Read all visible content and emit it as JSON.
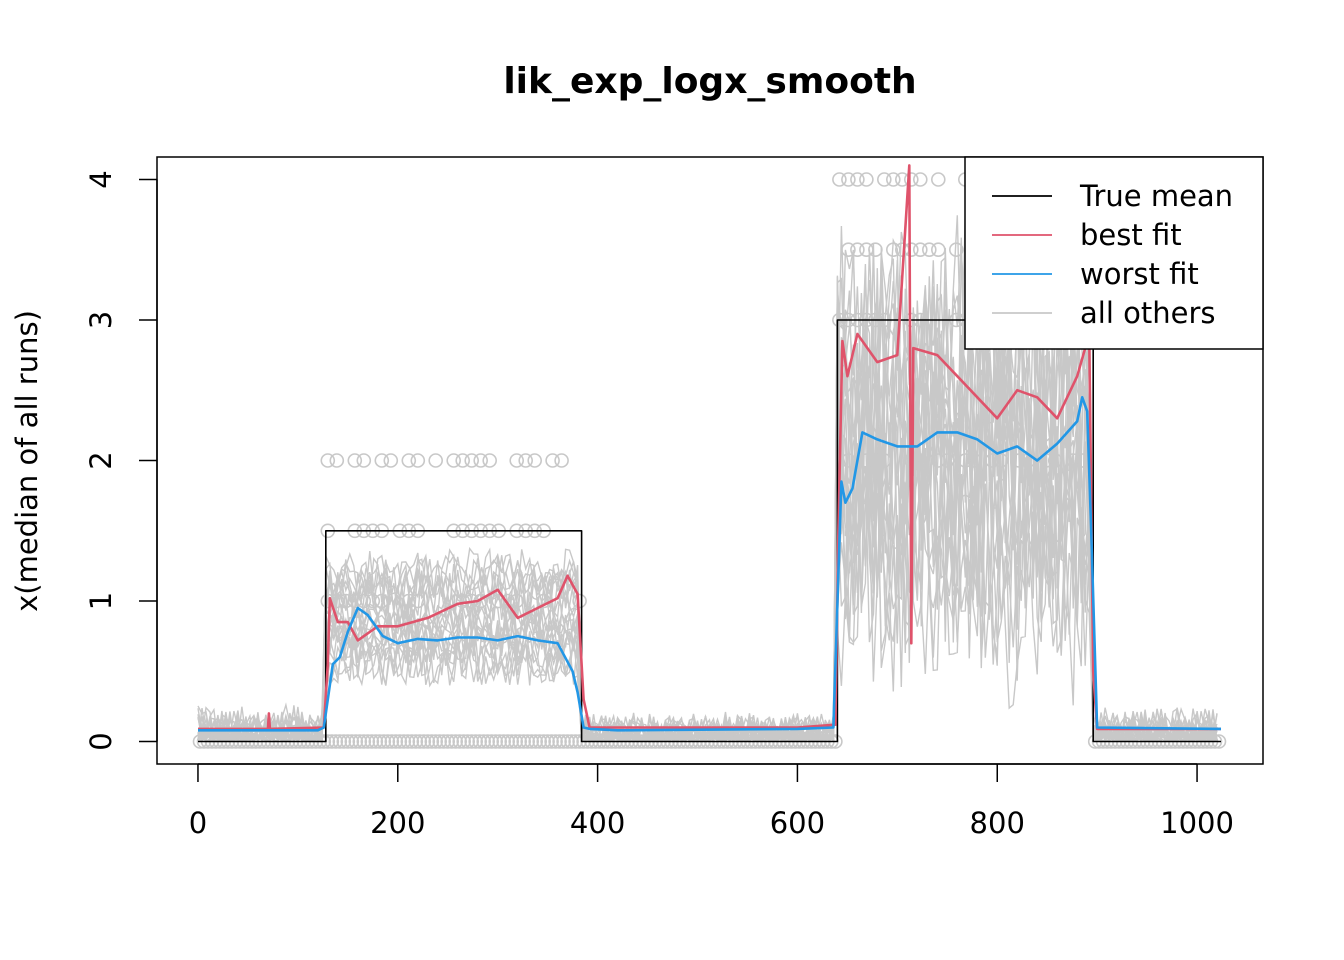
{
  "chart_data": {
    "type": "line",
    "title": "lik_exp_logx_smooth",
    "xlabel": "",
    "ylabel": "x(median of all runs)",
    "xlim": [
      -41,
      1066
    ],
    "ylim": [
      -0.16,
      4.16
    ],
    "x_ticks": [
      0,
      200,
      400,
      600,
      800,
      1000
    ],
    "y_ticks": [
      0,
      1,
      2,
      3,
      4
    ],
    "legend": {
      "position": "top-right",
      "entries": [
        {
          "label": "True mean",
          "color": "#000000"
        },
        {
          "label": "best fit",
          "color": "#DF536B"
        },
        {
          "label": "worst fit",
          "color": "#2297E6"
        },
        {
          "label": "all others",
          "color": "#C8C8C8"
        }
      ]
    },
    "segments": [
      {
        "start": 0,
        "end": 128,
        "true_mean": 0,
        "best": 0.09,
        "worst": 0.08,
        "others_low": 0.0,
        "others_high": 0.12,
        "obs_levels": [
          0
        ]
      },
      {
        "start": 128,
        "end": 384,
        "true_mean": 1.5,
        "best": 0.92,
        "worst": 0.76,
        "others_low": 0.55,
        "others_high": 1.2,
        "obs_levels": [
          0,
          1,
          1.5,
          2
        ]
      },
      {
        "start": 384,
        "end": 640,
        "true_mean": 0,
        "best": 0.1,
        "worst": 0.09,
        "others_low": 0.0,
        "others_high": 0.1,
        "obs_levels": [
          0
        ]
      },
      {
        "start": 640,
        "end": 896,
        "true_mean": 3,
        "best": 2.65,
        "worst": 2.1,
        "others_low": 1.1,
        "others_high": 2.9,
        "obs_levels": [
          2,
          3,
          3.5,
          4
        ]
      },
      {
        "start": 896,
        "end": 1024,
        "true_mean": 0,
        "best": 0.09,
        "worst": 0.09,
        "others_low": 0.0,
        "others_high": 0.12,
        "obs_levels": [
          0
        ]
      }
    ],
    "series": [
      {
        "name": "True mean",
        "color": "#000000",
        "x": [
          0,
          128,
          128,
          384,
          384,
          640,
          640,
          896,
          896,
          1024
        ],
        "y": [
          0,
          0,
          1.5,
          1.5,
          0,
          0,
          3,
          3,
          0,
          0
        ]
      },
      {
        "name": "best fit",
        "color": "#DF536B",
        "x": [
          0,
          60,
          70,
          71,
          72,
          126,
          130,
          132,
          140,
          150,
          160,
          180,
          200,
          230,
          260,
          280,
          300,
          320,
          340,
          360,
          370,
          380,
          386,
          392,
          420,
          500,
          600,
          638,
          641,
          645,
          650,
          660,
          680,
          700,
          712,
          714,
          716,
          740,
          760,
          780,
          800,
          820,
          840,
          860,
          880,
          892,
          896,
          900,
          1024
        ],
        "y": [
          0.09,
          0.09,
          0.09,
          0.2,
          0.09,
          0.1,
          0.55,
          1.02,
          0.85,
          0.85,
          0.72,
          0.82,
          0.82,
          0.88,
          0.98,
          1.0,
          1.08,
          0.88,
          0.95,
          1.02,
          1.18,
          1.05,
          0.3,
          0.1,
          0.1,
          0.1,
          0.1,
          0.12,
          1.5,
          2.85,
          2.6,
          2.9,
          2.7,
          2.75,
          4.1,
          0.7,
          2.8,
          2.75,
          2.6,
          2.45,
          2.3,
          2.5,
          2.45,
          2.3,
          2.6,
          2.9,
          0.5,
          0.09,
          0.09
        ]
      },
      {
        "name": "worst fit",
        "color": "#2297E6",
        "x": [
          0,
          120,
          126,
          130,
          135,
          142,
          150,
          160,
          170,
          185,
          200,
          220,
          240,
          260,
          280,
          300,
          320,
          340,
          360,
          375,
          380,
          386,
          392,
          420,
          600,
          636,
          641,
          644,
          648,
          655,
          665,
          680,
          700,
          720,
          740,
          760,
          780,
          800,
          820,
          840,
          860,
          880,
          885,
          890,
          894,
          900,
          1024
        ],
        "y": [
          0.08,
          0.08,
          0.1,
          0.3,
          0.55,
          0.6,
          0.78,
          0.95,
          0.9,
          0.75,
          0.7,
          0.73,
          0.72,
          0.74,
          0.74,
          0.72,
          0.75,
          0.72,
          0.7,
          0.5,
          0.35,
          0.1,
          0.09,
          0.08,
          0.09,
          0.1,
          1.2,
          1.85,
          1.7,
          1.8,
          2.2,
          2.15,
          2.1,
          2.1,
          2.2,
          2.2,
          2.15,
          2.05,
          2.1,
          2.0,
          2.12,
          2.28,
          2.45,
          2.35,
          1.5,
          0.1,
          0.09
        ]
      }
    ]
  }
}
